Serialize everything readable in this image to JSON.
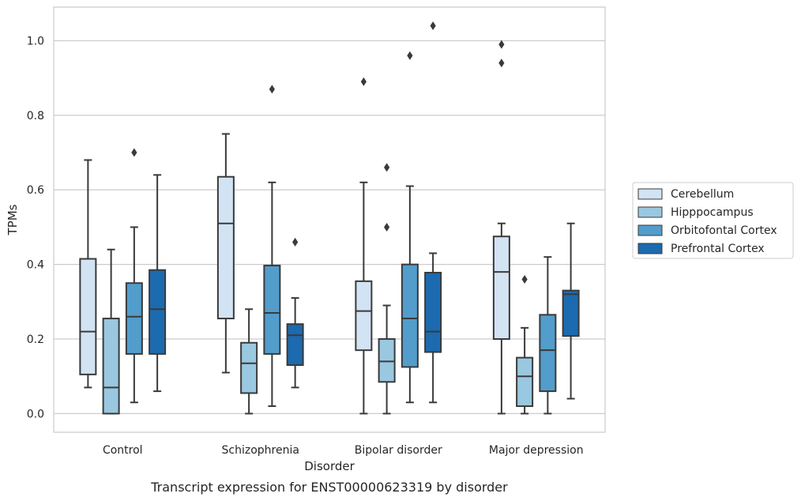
{
  "chart_data": {
    "type": "boxplot",
    "title": "",
    "caption": "Transcript expression for ENST00000623319 by disorder",
    "xlabel": "Disorder",
    "ylabel": "TPMs",
    "ylim": [
      -0.05,
      1.09
    ],
    "yticks": [
      0.0,
      0.2,
      0.4,
      0.6,
      0.8,
      1.0
    ],
    "ytick_labels": [
      "0.0",
      "0.2",
      "0.4",
      "0.6",
      "0.8",
      "1.0"
    ],
    "grid": "horizontal",
    "legend_position": "right",
    "categories": [
      "Control",
      "Schizophrenia",
      "Bipolar disorder",
      "Major depression"
    ],
    "series": [
      {
        "name": "Cerebellum",
        "color": "#d2e3f3",
        "boxes": [
          {
            "whislo": 0.07,
            "q1": 0.105,
            "med": 0.22,
            "q3": 0.415,
            "whishi": 0.68,
            "fliers": []
          },
          {
            "whislo": 0.11,
            "q1": 0.255,
            "med": 0.51,
            "q3": 0.635,
            "whishi": 0.75,
            "fliers": []
          },
          {
            "whislo": 0.0,
            "q1": 0.17,
            "med": 0.275,
            "q3": 0.355,
            "whishi": 0.62,
            "fliers": [
              0.89
            ]
          },
          {
            "whislo": 0.0,
            "q1": 0.2,
            "med": 0.38,
            "q3": 0.475,
            "whishi": 0.51,
            "fliers": [
              0.94,
              0.99
            ]
          }
        ]
      },
      {
        "name": "Hipppocampus",
        "color": "#9ac8e0",
        "boxes": [
          {
            "whislo": 0.0,
            "q1": 0.0,
            "med": 0.07,
            "q3": 0.255,
            "whishi": 0.44,
            "fliers": []
          },
          {
            "whislo": 0.0,
            "q1": 0.055,
            "med": 0.135,
            "q3": 0.19,
            "whishi": 0.28,
            "fliers": []
          },
          {
            "whislo": 0.0,
            "q1": 0.085,
            "med": 0.14,
            "q3": 0.2,
            "whishi": 0.29,
            "fliers": [
              0.5,
              0.66
            ]
          },
          {
            "whislo": 0.0,
            "q1": 0.02,
            "med": 0.1,
            "q3": 0.15,
            "whishi": 0.23,
            "fliers": [
              0.36
            ]
          }
        ]
      },
      {
        "name": "Orbitofontal Cortex",
        "color": "#529dcc",
        "boxes": [
          {
            "whislo": 0.03,
            "q1": 0.16,
            "med": 0.26,
            "q3": 0.35,
            "whishi": 0.5,
            "fliers": [
              0.7
            ]
          },
          {
            "whislo": 0.02,
            "q1": 0.16,
            "med": 0.27,
            "q3": 0.397,
            "whishi": 0.62,
            "fliers": [
              0.87
            ]
          },
          {
            "whislo": 0.03,
            "q1": 0.125,
            "med": 0.255,
            "q3": 0.4,
            "whishi": 0.61,
            "fliers": [
              0.96
            ]
          },
          {
            "whislo": 0.0,
            "q1": 0.06,
            "med": 0.17,
            "q3": 0.265,
            "whishi": 0.42,
            "fliers": []
          }
        ]
      },
      {
        "name": "Prefrontal Cortex",
        "color": "#1c6aaf",
        "boxes": [
          {
            "whislo": 0.06,
            "q1": 0.16,
            "med": 0.28,
            "q3": 0.385,
            "whishi": 0.64,
            "fliers": []
          },
          {
            "whislo": 0.07,
            "q1": 0.13,
            "med": 0.21,
            "q3": 0.24,
            "whishi": 0.31,
            "fliers": [
              0.46
            ]
          },
          {
            "whislo": 0.03,
            "q1": 0.165,
            "med": 0.22,
            "q3": 0.378,
            "whishi": 0.43,
            "fliers": [
              1.04
            ]
          },
          {
            "whislo": 0.04,
            "q1": 0.208,
            "med": 0.32,
            "q3": 0.33,
            "whishi": 0.51,
            "fliers": []
          }
        ]
      }
    ]
  }
}
